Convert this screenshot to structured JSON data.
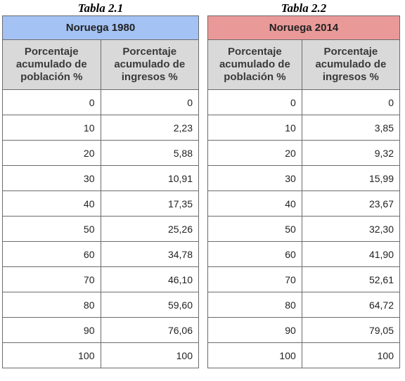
{
  "tables": [
    {
      "caption": "Tabla 2.1",
      "title": "Noruega 1980",
      "header_col1": "Porcentaje acumulado de población %",
      "header_col2": "Porcentaje acumulado de ingresos %",
      "rows": [
        [
          "0",
          "0"
        ],
        [
          "10",
          "2,23"
        ],
        [
          "20",
          "5,88"
        ],
        [
          "30",
          "10,91"
        ],
        [
          "40",
          "17,35"
        ],
        [
          "50",
          "25,26"
        ],
        [
          "60",
          "34,78"
        ],
        [
          "70",
          "46,10"
        ],
        [
          "80",
          "59,60"
        ],
        [
          "90",
          "76,06"
        ],
        [
          "100",
          "100"
        ]
      ]
    },
    {
      "caption": "Tabla 2.2",
      "title": "Noruega 2014",
      "header_col1": "Porcentaje acumulado de población %",
      "header_col2": "Porcentaje acumulado de ingresos %",
      "rows": [
        [
          "0",
          "0"
        ],
        [
          "10",
          "3,85"
        ],
        [
          "20",
          "9,32"
        ],
        [
          "30",
          "15,99"
        ],
        [
          "40",
          "23,67"
        ],
        [
          "50",
          "32,30"
        ],
        [
          "60",
          "41,90"
        ],
        [
          "70",
          "52,61"
        ],
        [
          "80",
          "64,72"
        ],
        [
          "90",
          "79,05"
        ],
        [
          "100",
          "100"
        ]
      ]
    }
  ],
  "colors": {
    "title_1980_bg": "#a4c2f4",
    "title_2014_bg": "#ea9999",
    "header_bg": "#d9d9d9"
  }
}
